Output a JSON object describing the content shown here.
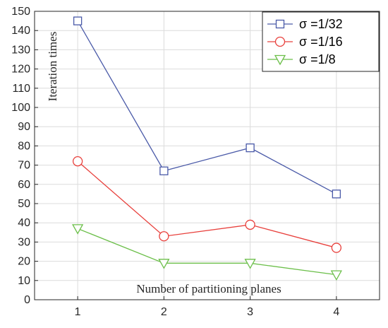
{
  "chart_data": {
    "type": "line",
    "xlabel": "Number of partitioning planes",
    "ylabel": "Iteration times",
    "x": [
      1,
      2,
      3,
      4
    ],
    "xlim": [
      0.5,
      4.5
    ],
    "ylim": [
      0,
      150
    ],
    "xticks": [
      "1",
      "2",
      "3",
      "4"
    ],
    "yticks": [
      "0",
      "10",
      "20",
      "30",
      "40",
      "50",
      "60",
      "70",
      "80",
      "90",
      "100",
      "110",
      "120",
      "130",
      "140",
      "150"
    ],
    "grid": true,
    "legend_position": "top-right",
    "series": [
      {
        "name": "σ =1/32",
        "values": [
          145,
          67,
          79,
          55
        ],
        "color": "#4a5aa8",
        "marker": "square"
      },
      {
        "name": "σ =1/16",
        "values": [
          72,
          33,
          39,
          27
        ],
        "color": "#e8403c",
        "marker": "circle"
      },
      {
        "name": "σ =1/8",
        "values": [
          37,
          19,
          19,
          13
        ],
        "color": "#6cbf4a",
        "marker": "triangle-down"
      }
    ]
  }
}
